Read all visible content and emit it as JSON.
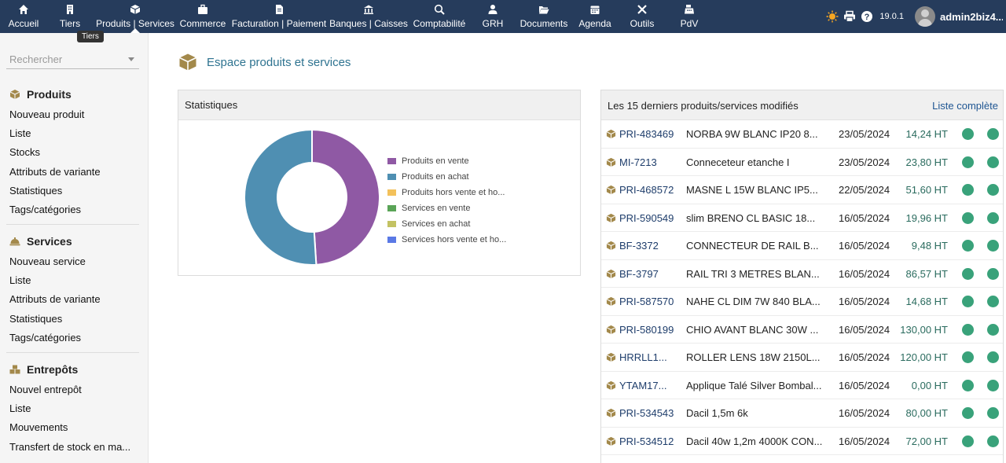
{
  "nav": {
    "items": [
      {
        "label": "Accueil",
        "icon": "home-icon"
      },
      {
        "label": "Tiers",
        "icon": "building-icon"
      },
      {
        "label": "Produits | Services",
        "icon": "cube-icon"
      },
      {
        "label": "Commerce",
        "icon": "briefcase-icon"
      },
      {
        "label": "Facturation | Paiement",
        "icon": "invoice-icon"
      },
      {
        "label": "Banques | Caisses",
        "icon": "bank-icon"
      },
      {
        "label": "Comptabilité",
        "icon": "search-dollar-icon"
      },
      {
        "label": "GRH",
        "icon": "user-tie-icon"
      },
      {
        "label": "Documents",
        "icon": "folder-open-icon"
      },
      {
        "label": "Agenda",
        "icon": "calendar-icon"
      },
      {
        "label": "Outils",
        "icon": "tools-icon"
      },
      {
        "label": "PdV",
        "icon": "cash-register-icon"
      }
    ],
    "tooltip": "Tiers",
    "version": "19.0.1",
    "username": "admin2biz4..."
  },
  "sidebar": {
    "search_placeholder": "Rechercher",
    "sections": [
      {
        "title": "Produits",
        "icon": "cube-icon",
        "items": [
          "Nouveau produit",
          "Liste",
          "Stocks",
          "Attributs de variante",
          "Statistiques",
          "Tags/catégories"
        ]
      },
      {
        "title": "Services",
        "icon": "concierge-bell-icon",
        "items": [
          "Nouveau service",
          "Liste",
          "Attributs de variante",
          "Statistiques",
          "Tags/catégories"
        ]
      },
      {
        "title": "Entrepôts",
        "icon": "boxes-icon",
        "items": [
          "Nouvel entrepôt",
          "Liste",
          "Mouvements",
          "Transfert de stock en ma..."
        ]
      }
    ]
  },
  "main": {
    "title": "Espace produits et services",
    "stats": {
      "title": "Statistiques",
      "legend": [
        {
          "label": "Produits en vente",
          "color": "#8f59a4"
        },
        {
          "label": "Produits en achat",
          "color": "#4f8fb2"
        },
        {
          "label": "Produits hors vente et ho...",
          "color": "#f3c15b"
        },
        {
          "label": "Services en vente",
          "color": "#5aa457"
        },
        {
          "label": "Services en achat",
          "color": "#c3c263"
        },
        {
          "label": "Services hors vente et ho...",
          "color": "#5a79e5"
        }
      ]
    },
    "recent": {
      "title": "Les 15 derniers produits/services modifiés",
      "link": "Liste complète",
      "rows": [
        {
          "ref": "PRI-483469",
          "label": "NORBA 9W BLANC IP20 8...",
          "date": "23/05/2024",
          "price": "14,24 HT"
        },
        {
          "ref": "MI-7213",
          "label": "Conneceteur etanche I",
          "date": "23/05/2024",
          "price": "23,80 HT"
        },
        {
          "ref": "PRI-468572",
          "label": "MASNE L 15W BLANC IP5...",
          "date": "22/05/2024",
          "price": "51,60 HT"
        },
        {
          "ref": "PRI-590549",
          "label": "slim BRENO CL BASIC 18...",
          "date": "16/05/2024",
          "price": "19,96 HT"
        },
        {
          "ref": "BF-3372",
          "label": "CONNECTEUR DE RAIL B...",
          "date": "16/05/2024",
          "price": "9,48 HT"
        },
        {
          "ref": "BF-3797",
          "label": "RAIL TRI 3 METRES BLAN...",
          "date": "16/05/2024",
          "price": "86,57 HT"
        },
        {
          "ref": "PRI-587570",
          "label": "NAHE CL DIM 7W 840 BLA...",
          "date": "16/05/2024",
          "price": "14,68 HT"
        },
        {
          "ref": "PRI-580199",
          "label": "CHIO AVANT BLANC 30W ...",
          "date": "16/05/2024",
          "price": "130,00 HT"
        },
        {
          "ref": "HRRLL1...",
          "label": "ROLLER LENS 18W 2150L...",
          "date": "16/05/2024",
          "price": "120,00 HT"
        },
        {
          "ref": "YTAM17...",
          "label": "Applique Talé Silver Bombal...",
          "date": "16/05/2024",
          "price": "0,00 HT"
        },
        {
          "ref": "PRI-534543",
          "label": "Dacil 1,5m 6k",
          "date": "16/05/2024",
          "price": "80,00 HT"
        },
        {
          "ref": "PRI-534512",
          "label": "Dacil 40w 1,2m 4000K CON...",
          "date": "16/05/2024",
          "price": "72,00 HT"
        }
      ]
    }
  },
  "chart_data": {
    "type": "pie",
    "categories": [
      "Produits en vente",
      "Produits en achat",
      "Produits hors vente et ho...",
      "Services en vente",
      "Services en achat",
      "Services hors vente et ho..."
    ],
    "values": [
      49,
      51,
      0,
      0,
      0,
      0
    ],
    "colors": [
      "#8f59a4",
      "#4f8fb2",
      "#f3c15b",
      "#5aa457",
      "#c3c263",
      "#5a79e5"
    ],
    "donut": true,
    "legend": "right"
  }
}
